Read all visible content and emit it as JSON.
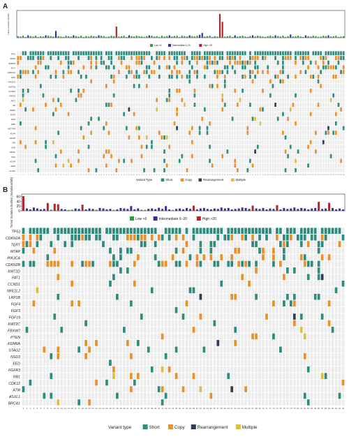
{
  "colors": {
    "short": "#2e8b7e",
    "copy": "#e8902c",
    "rearrangement": "#2f3e57",
    "multiple": "#d9bf4a",
    "empty": "#ececec",
    "low": "#2e9b3a",
    "intermediate": "#3a2f9a",
    "high": "#b0242f"
  },
  "panels": [
    {
      "label": "A",
      "chart_data": {
        "type": "bar",
        "ylabel": "Tumor mutation burden",
        "legend": [
          "Low <6",
          "Intermediate 6–20",
          "High >20"
        ],
        "tmb_values": [
          4,
          3,
          5,
          2,
          6,
          4,
          3,
          5,
          2,
          4,
          3,
          6,
          5,
          4,
          3,
          17,
          4,
          3,
          2,
          5,
          4,
          3,
          6,
          4,
          3,
          5,
          2,
          4,
          3,
          5,
          4,
          3,
          6,
          5,
          4,
          2,
          3,
          5,
          4,
          28,
          3,
          4,
          5,
          2,
          6,
          4,
          3,
          5,
          4,
          3,
          2,
          4,
          6,
          5,
          3,
          4,
          2,
          5,
          3,
          4,
          6,
          3,
          4,
          5,
          2,
          5,
          4,
          3,
          6,
          4,
          3,
          5,
          7,
          12,
          3,
          4,
          5,
          2,
          4,
          3,
          60,
          40,
          3,
          4,
          5,
          2,
          6,
          3,
          4,
          5,
          3,
          2,
          4,
          6,
          3,
          5,
          4,
          3,
          2,
          4,
          5,
          3,
          6,
          4,
          3,
          5,
          2,
          4,
          8,
          3,
          4,
          5,
          3,
          2,
          6,
          4,
          3,
          5,
          4,
          2,
          3,
          5,
          4,
          6,
          3,
          4,
          5,
          2,
          3,
          4
        ],
        "genes": [
          "TP53",
          "KRAS",
          "SMAD4",
          "MYC",
          "CDKN2A",
          "RNF",
          "PIK3CA",
          "KMT2D",
          "CCND1",
          "FGF19",
          "FAT1",
          "AR",
          "SPEN",
          "FGF3",
          "NOS",
          "ERK",
          "RICTOR",
          "FGF4",
          "FAT20",
          "PIK",
          "ATM",
          "PIK3C",
          "CDH",
          "ACVR",
          "ARID",
          "ALPK1"
        ],
        "legend_title": "Variant Type",
        "legend_items": [
          "Short",
          "Copy",
          "Rearrangement",
          "Multiple"
        ]
      }
    },
    {
      "label": "B",
      "chart_data": {
        "type": "bar",
        "ylabel": "Tumor mutation burden (mutations/Mb)",
        "yticks": [
          "0",
          "20",
          "40",
          "60"
        ],
        "ylim": [
          0,
          65
        ],
        "categories": [
          "1",
          "2",
          "3",
          "4",
          "5",
          "6",
          "7",
          "8",
          "9",
          "10",
          "11",
          "12",
          "13",
          "14",
          "15",
          "16",
          "17",
          "18",
          "19",
          "20",
          "21",
          "22",
          "23",
          "24",
          "25",
          "26",
          "27",
          "28",
          "29",
          "30",
          "31",
          "32",
          "33",
          "34",
          "35",
          "36",
          "37",
          "38",
          "39",
          "40",
          "41",
          "42",
          "43",
          "44",
          "45",
          "46",
          "47",
          "48",
          "49",
          "50",
          "51",
          "52",
          "53",
          "54",
          "55",
          "56",
          "57",
          "58",
          "59",
          "60",
          "61",
          "62",
          "63",
          "64",
          "65",
          "66",
          "67",
          "68",
          "69",
          "70",
          "71",
          "72",
          "73",
          "74",
          "75",
          "76",
          "77",
          "78",
          "79",
          "80",
          "81",
          "82",
          "83",
          "84",
          "85",
          "86",
          "87",
          "88",
          "89",
          "90",
          "91",
          "92",
          "93"
        ],
        "values": [
          62,
          10,
          6,
          14,
          10,
          6,
          8,
          33,
          5,
          30,
          28,
          8,
          6,
          4,
          5,
          10,
          8,
          26,
          6,
          10,
          8,
          5,
          12,
          10,
          6,
          8,
          4,
          6,
          12,
          10,
          8,
          20,
          6,
          10,
          5,
          4,
          8,
          10,
          7,
          13,
          8,
          20,
          6,
          4,
          8,
          10,
          6,
          12,
          8,
          22,
          6,
          10,
          12,
          8,
          6,
          10,
          8,
          14,
          10,
          12,
          6,
          8,
          10,
          14,
          12,
          8,
          22,
          10,
          8,
          12,
          6,
          10,
          8,
          24,
          6,
          12,
          8,
          10,
          14,
          8,
          12,
          10,
          6,
          10,
          12,
          38,
          8,
          10,
          34,
          12,
          6,
          10,
          6
        ],
        "legend": [
          "Low <6",
          "Intermediate 6–20",
          "High >20"
        ],
        "genes": [
          "TP53",
          "CDKN2A",
          "TERT",
          "MTAP",
          "PIK3CA",
          "CDKN2B",
          "KMT2D",
          "FAT1",
          "CCND1",
          "NFE2L2",
          "LRP1B",
          "FGF4",
          "FGF3",
          "FGF19",
          "KMT2C",
          "FBXW7",
          "PTEN",
          "KDM6A",
          "STAG2",
          "NSD3",
          "EED",
          "FGFR3",
          "RB1",
          "CDK12",
          "ATM",
          "ASXL1",
          "BRCA1"
        ],
        "legend_title": "Variant type",
        "legend_items": [
          "Short",
          "Copy",
          "Rearrangement",
          "Multiple"
        ]
      }
    }
  ]
}
